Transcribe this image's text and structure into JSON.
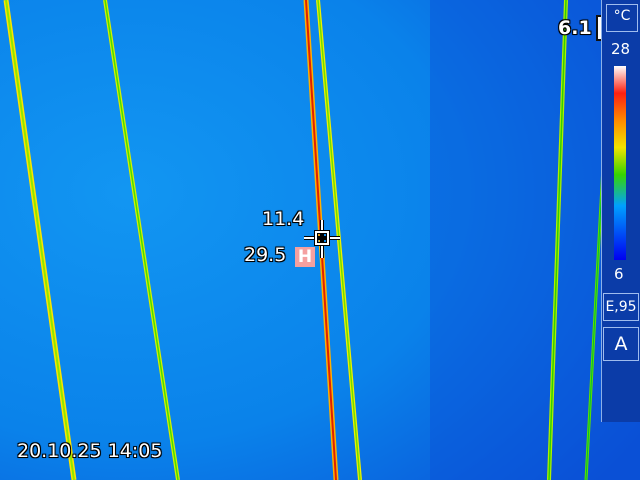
{
  "measurements": {
    "center_value": "11.4",
    "hot_value": "29.5",
    "hot_marker": "H",
    "spot_value": "6.1"
  },
  "scale": {
    "unit": "°C",
    "max": "28",
    "min": "6",
    "emissivity": "E,95",
    "mode": "A"
  },
  "timestamp": "20.10.25 14:05",
  "colors": {
    "background": "#0a7fe8",
    "panel": "#0b3ca8",
    "hot_marker": "#f4a0a0"
  }
}
